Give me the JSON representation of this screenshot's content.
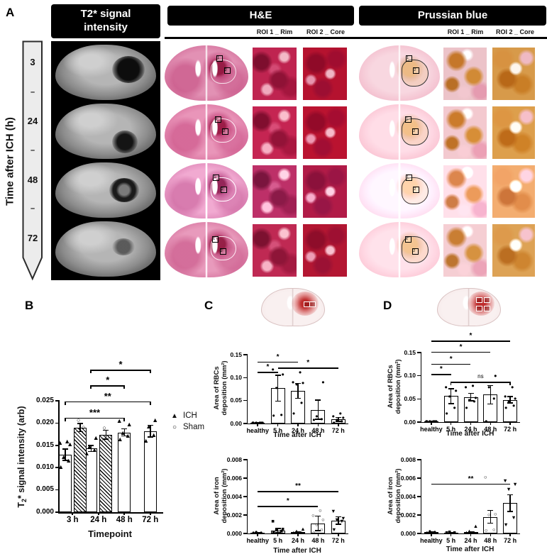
{
  "panel_a": {
    "label": "A",
    "time_axis_label": "Time after ICH (h)",
    "arrow_labels": [
      "3",
      "–",
      "24",
      "–",
      "48",
      "–",
      "72"
    ],
    "t2_header_line1": "T2* signal",
    "t2_header_line2": "intensity",
    "he_header": "H&E",
    "pb_header": "Prussian blue",
    "roi1_label": "ROI 1 _ Rim",
    "roi2_label": "ROI 2 _ Core",
    "roi_box_1": "1",
    "roi_box_2": "2"
  },
  "panel_b": {
    "label": "B",
    "legend": [
      {
        "marker": "▲",
        "label": "ICH"
      },
      {
        "marker": "○",
        "label": "Sham"
      }
    ]
  },
  "panel_c": {
    "label": "C"
  },
  "panel_d": {
    "label": "D"
  },
  "colors": {
    "he_stain_pink": "#bf2450",
    "prussian_orange": "#c5772a",
    "pale_slice_pink": "#f3bccc",
    "hemorrhage_red": "#b91919",
    "bar_fill": "#ffffff",
    "axis_black": "#000000"
  },
  "chart_data": [
    {
      "type": "bar",
      "name": "T2* signal intensity by timepoint",
      "ylabel": "T2* signal intensity (arb)",
      "ylabel_parts": [
        "T",
        "2",
        "* signal intensity (arb)"
      ],
      "xlabel": "Timepoint",
      "categories": [
        "3 h",
        "24 h",
        "48 h",
        "72 h"
      ],
      "ylim": [
        0,
        0.025
      ],
      "yticks": [
        0,
        0.005,
        0.01,
        0.015,
        0.02,
        0.025
      ],
      "ytick_labels": [
        "0.000",
        "0.005",
        "0.010",
        "0.015",
        "0.020",
        "0.025"
      ],
      "series": [
        {
          "name": "ICH",
          "marker": "tri",
          "hatch": false,
          "values": [
            0.0129,
            0.0143,
            0.0179,
            0.0182
          ],
          "errors": [
            0.0013,
            0.0007,
            0.0008,
            0.0013
          ],
          "points": [
            [
              0.0101,
              0.0114,
              0.0122,
              0.0151,
              0.0155,
              0.0157
            ],
            [
              0.0131,
              0.0139,
              0.0147,
              0.0166
            ],
            [
              0.0162,
              0.0171,
              0.0176,
              0.0196,
              0.0204
            ],
            [
              0.0159,
              0.0172,
              0.0191,
              0.0205
            ]
          ]
        },
        {
          "name": "Sham",
          "marker": "circ-o",
          "hatch": true,
          "values": [
            0.019,
            0.0174,
            null,
            null
          ],
          "errors": [
            0.0009,
            0.001,
            null,
            null
          ],
          "points": [
            [
              0.0182,
              0.0189,
              0.0205
            ],
            [
              0.0161,
              0.0169,
              0.0188
            ],
            null,
            null
          ]
        }
      ],
      "significance": [
        {
          "c1": 1,
          "s1": 0,
          "c2": 3,
          "s2": 0,
          "y": 0.032,
          "label": "*",
          "style": "bracket"
        },
        {
          "c1": 1,
          "s1": 0,
          "c2": 2,
          "s2": 0,
          "y": 0.0285,
          "label": "*",
          "style": "bracket"
        },
        {
          "c1": 0,
          "s1": 0,
          "c2": 3,
          "s2": 0,
          "y": 0.0249,
          "label": "**",
          "style": "bracket"
        },
        {
          "c1": 0,
          "s1": 0,
          "c2": 2,
          "s2": 0,
          "y": 0.0212,
          "label": "***",
          "style": "bracket"
        }
      ],
      "legend": [
        "ICH",
        "Sham"
      ],
      "legend_position": "right"
    },
    {
      "type": "bar",
      "name": "Area of RBCs deposition (rim+core ROI)",
      "ylabel": "Area of RBCs deposition (mm²)",
      "ylabel_lines": [
        "Area of RBCs",
        "deposition (mm²)"
      ],
      "xlabel": "Time after ICH",
      "categories": [
        "healthy",
        "5 h",
        "24 h",
        "48 h",
        "72 h"
      ],
      "ylim": [
        0,
        0.15
      ],
      "yticks": [
        0,
        0.05,
        0.1,
        0.15
      ],
      "ytick_labels": [
        "0.00",
        "0.05",
        "0.10",
        "0.15"
      ],
      "series": [
        {
          "name": "RBCs",
          "marker": "circ",
          "hatch": false,
          "values": [
            0.001,
            0.077,
            0.071,
            0.03,
            0.009
          ],
          "errors": [
            0.0008,
            0.028,
            0.016,
            0.021,
            0.004
          ],
          "points": [
            [
              0.001,
              0.001,
              0.001,
              0.001,
              0.001,
              0.001
            ],
            [
              0.017,
              0.019,
              0.077,
              0.107,
              0.118
            ],
            [
              0.022,
              0.045,
              0.085,
              0.088,
              0.09,
              0.111
            ],
            [
              0.008,
              0.01,
              0.015,
              0.089
            ],
            [
              0.002,
              0.005,
              0.008,
              0.012,
              0.016,
              0.022
            ]
          ]
        }
      ],
      "significance": [
        {
          "c1": 0,
          "s1": 0,
          "c2": 2,
          "s2": 0,
          "y": 0.135,
          "label": "*",
          "style": "line"
        },
        {
          "c1": 1,
          "s1": 0,
          "c2": 4,
          "s2": 0,
          "y": 0.122,
          "label": "*",
          "style": "line"
        },
        {
          "c1": 0,
          "s1": 0,
          "c2": 1,
          "s2": 0,
          "y": 0.113,
          "label": "*",
          "style": "line"
        }
      ]
    },
    {
      "type": "bar",
      "name": "Area of iron deposition (rim+core ROI)",
      "ylabel": "Area of iron deposition (mm²)",
      "ylabel_lines": [
        "Area of iron",
        "deposition (mm²)"
      ],
      "xlabel": "Time after ICH",
      "categories": [
        "healthy",
        "5 h",
        "24 h",
        "48 h",
        "72 h"
      ],
      "ylim": [
        0,
        0.008
      ],
      "yticks": [
        0,
        0.002,
        0.004,
        0.006,
        0.008
      ],
      "ytick_labels": [
        "0.000",
        "0.002",
        "0.004",
        "0.006",
        "0.008"
      ],
      "series": [
        {
          "name": "iron",
          "markers": [
            "circ",
            "sq",
            "tri",
            "circ-o",
            "tri-d"
          ],
          "hatch": false,
          "values": [
            8e-05,
            0.0003,
            0.00012,
            0.0011,
            0.0014
          ],
          "errors": [
            4e-05,
            0.00022,
            8e-05,
            0.0008,
            0.0004
          ],
          "points": [
            [
              4e-05,
              8e-05,
              0.00012
            ],
            [
              6e-05,
              0.0002,
              0.0004,
              0.0005,
              0.0013
            ],
            [
              5e-05,
              0.0001,
              0.0002,
              0.0005
            ],
            [
              0.0001,
              0.0004,
              0.0009,
              0.0015,
              0.0019,
              0.0025
            ],
            [
              0.0004,
              0.0013,
              0.0015,
              0.0016,
              0.0024
            ]
          ]
        }
      ],
      "significance": [
        {
          "c1": 0,
          "s1": 0,
          "c2": 4,
          "s2": 0,
          "y": 0.0046,
          "label": "**",
          "style": "line"
        },
        {
          "c1": 0,
          "s1": 0,
          "c2": 3,
          "s2": 0,
          "y": 0.003,
          "label": "*",
          "style": "line"
        }
      ]
    },
    {
      "type": "bar",
      "name": "Area of RBCs deposition (4-ROI grid)",
      "ylabel": "Area of RBCs deposition (mm²)",
      "ylabel_lines": [
        "Area of RBCs",
        "deposition (mm²)"
      ],
      "xlabel": "Time after ICH",
      "categories": [
        "healthy",
        "5 h",
        "24 h",
        "48 h",
        "72 h"
      ],
      "ylim": [
        0,
        0.15
      ],
      "yticks": [
        0,
        0.05,
        0.1,
        0.15
      ],
      "ytick_labels": [
        "0.00",
        "0.05",
        "0.10",
        "0.15"
      ],
      "series": [
        {
          "name": "RBCs",
          "marker": "circ",
          "hatch": false,
          "values": [
            0.001,
            0.056,
            0.054,
            0.059,
            0.048
          ],
          "errors": [
            0.0008,
            0.016,
            0.008,
            0.02,
            0.007
          ],
          "points": [
            [
              0.001,
              0.001,
              0.001,
              0.001,
              0.001,
              0.001
            ],
            [
              0.018,
              0.03,
              0.055,
              0.068,
              0.075
            ],
            [
              0.03,
              0.045,
              0.048,
              0.052,
              0.075,
              0.078
            ],
            [
              0.002,
              0.05,
              0.075,
              0.1
            ],
            [
              0.03,
              0.035,
              0.045,
              0.05,
              0.055,
              0.075
            ]
          ]
        }
      ],
      "significance": [
        {
          "c1": 0,
          "s1": 0,
          "c2": 4,
          "s2": 0,
          "y": 0.176,
          "label": "*",
          "style": "line"
        },
        {
          "c1": 0,
          "s1": 0,
          "c2": 3,
          "s2": 0,
          "y": 0.152,
          "label": "*",
          "style": "line"
        },
        {
          "c1": 0,
          "s1": 0,
          "c2": 2,
          "s2": 0,
          "y": 0.126,
          "label": "*",
          "style": "line"
        },
        {
          "c1": 0,
          "s1": 0,
          "c2": 1,
          "s2": 0,
          "y": 0.104,
          "label": "*",
          "style": "line"
        },
        {
          "c1": 1,
          "s1": 0,
          "c2": 4,
          "s2": 0,
          "y": 0.087,
          "label": "ns",
          "style": "bracket"
        }
      ]
    },
    {
      "type": "bar",
      "name": "Area of iron deposition (4-ROI grid)",
      "ylabel": "Area of iron deposition (mm²)",
      "ylabel_lines": [
        "Area of iron",
        "deposition (mm²)"
      ],
      "xlabel": "Time after ICH",
      "categories": [
        "healthy",
        "5 h",
        "24 h",
        "48 h",
        "72 h"
      ],
      "ylim": [
        0,
        0.008
      ],
      "yticks": [
        0,
        0.002,
        0.004,
        0.006,
        0.008
      ],
      "ytick_labels": [
        "0.000",
        "0.002",
        "0.004",
        "0.006",
        "0.008"
      ],
      "series": [
        {
          "name": "iron",
          "markers": [
            "circ",
            "sq",
            "tri",
            "circ-o",
            "tri-d"
          ],
          "hatch": false,
          "values": [
            0.00012,
            8e-05,
            0.00012,
            0.0018,
            0.0033
          ],
          "errors": [
            6e-05,
            4e-05,
            8e-05,
            0.0007,
            0.0009
          ],
          "points": [
            [
              0.0001,
              0.00015,
              0.0002
            ],
            [
              5e-05,
              0.0001,
              0.00015
            ],
            [
              5e-05,
              0.0001,
              0.0002,
              0.0008
            ],
            [
              0.0003,
              0.0004,
              0.002,
              0.0021,
              0.0061
            ],
            [
              0.0009,
              0.0017,
              0.0048,
              0.0053,
              0.0057
            ]
          ]
        }
      ],
      "significance": [
        {
          "c1": 0,
          "s1": 0,
          "c2": 4,
          "s2": 0,
          "y": 0.0054,
          "label": "**",
          "style": "line"
        }
      ]
    }
  ]
}
